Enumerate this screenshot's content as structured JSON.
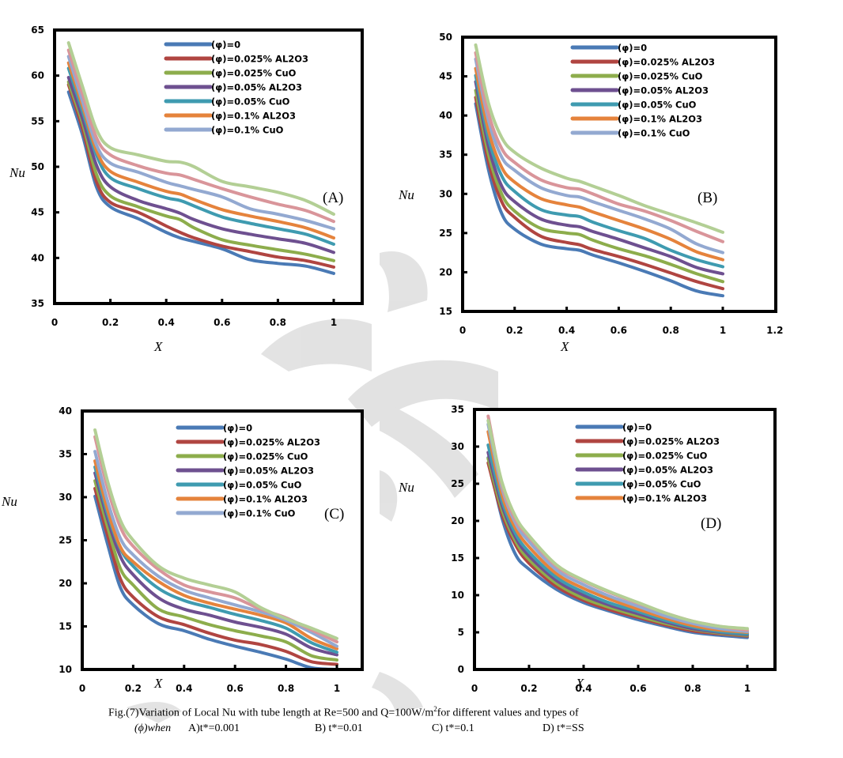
{
  "caption": {
    "line1_pre": "Fig.(7)Variation of Local Nu with tube length at Re=500 and Q=100W/m",
    "line1_sup": "2",
    "line1_post": "for different values and types of",
    "line2_phi": "(ϕ)when",
    "line2_a": "A)t*=0.001",
    "line2_b": "B) t*=0.01",
    "line2_c": "C) t*=0.1",
    "line2_d": "D) t*=SS"
  },
  "colors": {
    "phi0": "#4a7ab5",
    "al_0025": "#b04541",
    "cuo_0025": "#8dad4c",
    "al_005": "#6e5090",
    "cuo_005": "#3f9bb0",
    "al_01": "#e5833c",
    "cuo_01": "#93a9d1",
    "extra_pink": "#d9959a",
    "extra_lightgreen": "#b3cf95"
  },
  "chart_data": [
    {
      "type": "line",
      "panel_label": "(A)",
      "title": "",
      "xlabel": "X",
      "ylabel": "Nu",
      "xlim": [
        0,
        1.1
      ],
      "ylim": [
        35,
        65
      ],
      "xticks": [
        "0",
        "0.2",
        "0.4",
        "0.6",
        "0.8",
        "1"
      ],
      "yticks": [
        "35",
        "40",
        "45",
        "50",
        "55",
        "60",
        "65"
      ],
      "legend_position": "top-right",
      "x": [
        0.05,
        0.1,
        0.15,
        0.2,
        0.3,
        0.4,
        0.45,
        0.5,
        0.6,
        0.7,
        0.8,
        0.9,
        1.0
      ],
      "series": [
        {
          "name": "(φ)=0",
          "color_key": "phi0",
          "in_legend": true,
          "values": [
            58.2,
            53.5,
            47.8,
            45.6,
            44.3,
            42.8,
            42.2,
            41.8,
            41.0,
            39.8,
            39.4,
            39.1,
            38.3
          ]
        },
        {
          "name": "(φ)=0.025% AL2O3",
          "color_key": "al_0025",
          "in_legend": true,
          "values": [
            59.0,
            54.2,
            48.4,
            46.1,
            45.0,
            43.5,
            42.8,
            42.2,
            41.3,
            40.7,
            40.1,
            39.7,
            39.0
          ]
        },
        {
          "name": "(φ)=0.025% CuO",
          "color_key": "cuo_0025",
          "in_legend": true,
          "values": [
            59.3,
            54.8,
            49.2,
            46.8,
            45.6,
            44.6,
            44.2,
            43.3,
            42.0,
            41.4,
            40.9,
            40.4,
            39.7
          ]
        },
        {
          "name": "(φ)=0.05% AL2O3",
          "color_key": "al_005",
          "in_legend": true,
          "values": [
            59.8,
            55.3,
            50.2,
            47.8,
            46.3,
            45.4,
            44.9,
            44.2,
            43.2,
            42.6,
            42.1,
            41.6,
            40.6
          ]
        },
        {
          "name": "(φ)=0.05% CuO",
          "color_key": "cuo_005",
          "in_legend": true,
          "values": [
            60.8,
            56.1,
            51.3,
            48.8,
            47.6,
            46.6,
            46.3,
            45.7,
            44.5,
            43.8,
            43.2,
            42.6,
            41.5
          ]
        },
        {
          "name": "(φ)=0.1% AL2O3",
          "color_key": "al_01",
          "in_legend": true,
          "values": [
            61.4,
            56.7,
            51.8,
            49.5,
            48.3,
            47.3,
            47.0,
            46.4,
            45.3,
            44.6,
            44.0,
            43.3,
            42.2
          ]
        },
        {
          "name": "(φ)=0.1% CuO",
          "color_key": "cuo_01",
          "in_legend": true,
          "values": [
            62.1,
            57.2,
            52.4,
            50.4,
            49.4,
            48.3,
            47.9,
            47.5,
            46.7,
            45.4,
            44.8,
            44.1,
            43.2
          ]
        },
        {
          "name": "",
          "color_key": "extra_pink",
          "in_legend": false,
          "values": [
            62.8,
            58.0,
            53.2,
            51.3,
            50.1,
            49.3,
            49.1,
            48.6,
            47.6,
            46.7,
            45.9,
            45.2,
            44.0
          ]
        },
        {
          "name": "",
          "color_key": "extra_lightgreen",
          "in_legend": false,
          "values": [
            63.6,
            58.8,
            54.1,
            52.1,
            51.3,
            50.6,
            50.5,
            50.0,
            48.4,
            47.8,
            47.2,
            46.3,
            44.8
          ]
        }
      ]
    },
    {
      "type": "line",
      "panel_label": "(B)",
      "title": "",
      "xlabel": "X",
      "ylabel": "Nu",
      "xlim": [
        0,
        1.2
      ],
      "ylim": [
        15,
        50
      ],
      "xticks": [
        "0",
        "0.2",
        "0.4",
        "0.6",
        "0.8",
        "1",
        "1.2"
      ],
      "yticks": [
        "15",
        "20",
        "25",
        "30",
        "35",
        "40",
        "45",
        "50"
      ],
      "legend_position": "top-right",
      "x": [
        0.05,
        0.1,
        0.15,
        0.2,
        0.3,
        0.4,
        0.45,
        0.5,
        0.6,
        0.7,
        0.8,
        0.9,
        1.0
      ],
      "series": [
        {
          "name": "(φ)=0",
          "color_key": "phi0",
          "in_legend": true,
          "values": [
            41.5,
            33.0,
            27.5,
            25.5,
            23.6,
            23.0,
            22.8,
            22.2,
            21.2,
            20.1,
            18.9,
            17.6,
            17.0
          ]
        },
        {
          "name": "(φ)=0.025% AL2O3",
          "color_key": "al_0025",
          "in_legend": true,
          "values": [
            42.3,
            34.0,
            29.0,
            27.0,
            24.6,
            23.8,
            23.5,
            22.9,
            22.0,
            21.0,
            19.9,
            18.8,
            17.9
          ]
        },
        {
          "name": "(φ)=0.025% CuO",
          "color_key": "cuo_0025",
          "in_legend": true,
          "values": [
            43.2,
            35.0,
            30.0,
            27.8,
            25.6,
            25.0,
            24.8,
            24.1,
            23.0,
            22.1,
            21.0,
            19.8,
            18.8
          ]
        },
        {
          "name": "(φ)=0.05% AL2O3",
          "color_key": "al_005",
          "in_legend": true,
          "values": [
            44.3,
            36.0,
            31.0,
            29.0,
            26.8,
            26.0,
            25.8,
            25.2,
            24.2,
            23.1,
            22.0,
            20.6,
            19.8
          ]
        },
        {
          "name": "(φ)=0.05% CuO",
          "color_key": "cuo_005",
          "in_legend": true,
          "values": [
            45.1,
            37.0,
            32.3,
            30.3,
            28.0,
            27.3,
            27.1,
            26.4,
            25.3,
            24.3,
            22.8,
            21.6,
            20.7
          ]
        },
        {
          "name": "(φ)=0.1% AL2O3",
          "color_key": "al_01",
          "in_legend": true,
          "values": [
            46.0,
            38.0,
            33.4,
            31.5,
            29.4,
            28.6,
            28.3,
            27.7,
            26.6,
            25.5,
            24.2,
            22.6,
            21.6
          ]
        },
        {
          "name": "(φ)=0.1% CuO",
          "color_key": "cuo_01",
          "in_legend": true,
          "values": [
            47.2,
            39.3,
            34.7,
            33.0,
            30.8,
            29.8,
            29.6,
            29.0,
            27.9,
            26.8,
            25.5,
            23.6,
            22.5
          ]
        },
        {
          "name": "",
          "color_key": "extra_pink",
          "in_legend": false,
          "values": [
            48.0,
            40.2,
            35.8,
            34.0,
            31.8,
            30.8,
            30.6,
            30.0,
            28.7,
            27.8,
            26.6,
            25.2,
            23.9
          ]
        },
        {
          "name": "",
          "color_key": "extra_lightgreen",
          "in_legend": false,
          "values": [
            49.0,
            41.5,
            37.2,
            35.3,
            33.3,
            32.0,
            31.6,
            31.0,
            29.8,
            28.5,
            27.4,
            26.3,
            25.1
          ]
        }
      ]
    },
    {
      "type": "line",
      "panel_label": "(C)",
      "title": "",
      "xlabel": "X",
      "ylabel": "Nu",
      "xlim": [
        0,
        1.1
      ],
      "ylim": [
        10,
        40
      ],
      "xticks": [
        "0",
        "0.2",
        "0.4",
        "0.6",
        "0.8",
        "1"
      ],
      "yticks": [
        "10",
        "15",
        "20",
        "25",
        "30",
        "35",
        "40"
      ],
      "legend_position": "top-right",
      "x": [
        0.05,
        0.1,
        0.15,
        0.2,
        0.3,
        0.4,
        0.5,
        0.6,
        0.7,
        0.8,
        0.9,
        1.0
      ],
      "series": [
        {
          "name": "(φ)=0",
          "color_key": "phi0",
          "in_legend": true,
          "values": [
            30.1,
            24.5,
            19.5,
            17.5,
            15.3,
            14.5,
            13.5,
            12.7,
            12.0,
            11.2,
            10.2,
            10.0
          ]
        },
        {
          "name": "(φ)=0.025% AL2O3",
          "color_key": "al_0025",
          "in_legend": true,
          "values": [
            31.0,
            25.5,
            20.5,
            18.4,
            16.1,
            15.2,
            14.2,
            13.4,
            12.9,
            12.1,
            10.9,
            10.6
          ]
        },
        {
          "name": "(φ)=0.025% CuO",
          "color_key": "cuo_0025",
          "in_legend": true,
          "values": [
            31.9,
            26.5,
            21.7,
            19.8,
            17.0,
            16.1,
            15.2,
            14.5,
            13.9,
            13.2,
            11.6,
            11.1
          ]
        },
        {
          "name": "(φ)=0.05% AL2O3",
          "color_key": "al_005",
          "in_legend": true,
          "values": [
            32.8,
            27.4,
            23.1,
            21.0,
            18.3,
            17.0,
            16.3,
            15.5,
            14.9,
            14.1,
            12.5,
            11.7
          ]
        },
        {
          "name": "(φ)=0.05% CuO",
          "color_key": "cuo_005",
          "in_legend": true,
          "values": [
            33.5,
            28.0,
            24.0,
            22.0,
            19.4,
            18.0,
            17.2,
            16.4,
            15.7,
            14.8,
            13.1,
            12.0
          ]
        },
        {
          "name": "(φ)=0.1% AL2O3",
          "color_key": "al_01",
          "in_legend": true,
          "values": [
            34.2,
            28.5,
            24.2,
            22.5,
            20.2,
            18.6,
            17.7,
            17.0,
            16.3,
            15.4,
            13.6,
            12.4
          ]
        },
        {
          "name": "(φ)=0.1% CuO",
          "color_key": "cuo_01",
          "in_legend": true,
          "values": [
            35.3,
            29.5,
            25.2,
            23.3,
            20.8,
            19.2,
            18.3,
            17.5,
            16.7,
            15.7,
            14.3,
            12.7
          ]
        },
        {
          "name": "",
          "color_key": "extra_pink",
          "in_legend": false,
          "values": [
            37.0,
            31.0,
            26.5,
            24.3,
            21.6,
            19.8,
            19.0,
            18.3,
            17.0,
            16.0,
            14.6,
            13.2
          ]
        },
        {
          "name": "",
          "color_key": "extra_lightgreen",
          "in_legend": false,
          "values": [
            37.8,
            31.8,
            27.3,
            25.0,
            22.0,
            20.6,
            19.8,
            19.0,
            17.2,
            15.9,
            14.8,
            13.6
          ]
        }
      ]
    },
    {
      "type": "line",
      "panel_label": "(D)",
      "title": "",
      "xlabel": "X",
      "ylabel": "Nu",
      "xlim": [
        0,
        1.1
      ],
      "ylim": [
        0,
        35
      ],
      "xticks": [
        "0",
        "0.2",
        "0.4",
        "0.6",
        "0.8",
        "1"
      ],
      "yticks": [
        "0",
        "5",
        "10",
        "15",
        "20",
        "25",
        "30",
        "35"
      ],
      "legend_position": "top-right",
      "x": [
        0.05,
        0.1,
        0.15,
        0.2,
        0.3,
        0.4,
        0.5,
        0.6,
        0.7,
        0.8,
        0.9,
        1.0
      ],
      "series": [
        {
          "name": "(φ)=0",
          "color_key": "phi0",
          "in_legend": true,
          "values": [
            28.5,
            20.5,
            15.5,
            13.5,
            10.8,
            9.0,
            7.8,
            6.7,
            5.8,
            5.0,
            4.6,
            4.3
          ]
        },
        {
          "name": "(φ)=0.025% AL2O3",
          "color_key": "al_0025",
          "in_legend": true,
          "values": [
            27.8,
            21.0,
            16.8,
            14.3,
            11.2,
            9.3,
            8.0,
            7.0,
            6.0,
            5.2,
            4.8,
            4.5
          ]
        },
        {
          "name": "(φ)=0.025% CuO",
          "color_key": "cuo_0025",
          "in_legend": true,
          "values": [
            28.4,
            21.6,
            17.3,
            14.8,
            11.6,
            9.6,
            8.3,
            7.2,
            6.2,
            5.4,
            4.9,
            4.6
          ]
        },
        {
          "name": "(φ)=0.05% AL2O3",
          "color_key": "al_005",
          "in_legend": true,
          "values": [
            29.2,
            22.2,
            17.8,
            15.3,
            12.0,
            10.0,
            8.6,
            7.5,
            6.4,
            5.5,
            5.0,
            4.7
          ]
        },
        {
          "name": "(φ)=0.05% CuO",
          "color_key": "cuo_005",
          "in_legend": true,
          "values": [
            30.2,
            22.8,
            18.3,
            15.8,
            12.4,
            10.4,
            8.9,
            7.8,
            6.6,
            5.7,
            5.1,
            4.8
          ]
        },
        {
          "name": "(φ)=0.1% AL2O3",
          "color_key": "al_01",
          "in_legend": true,
          "values": [
            32.0,
            23.6,
            19.0,
            16.5,
            12.9,
            10.9,
            9.4,
            8.1,
            6.9,
            5.9,
            5.3,
            5.0
          ]
        },
        {
          "name": "",
          "color_key": "cuo_01",
          "in_legend": false,
          "values": [
            33.0,
            24.5,
            19.7,
            17.2,
            13.4,
            11.4,
            9.8,
            8.5,
            7.2,
            6.2,
            5.5,
            5.1
          ]
        },
        {
          "name": "",
          "color_key": "extra_pink",
          "in_legend": false,
          "values": [
            34.1,
            25.0,
            20.2,
            17.8,
            13.9,
            11.9,
            10.3,
            8.9,
            7.6,
            6.5,
            5.8,
            5.3
          ]
        },
        {
          "name": "",
          "color_key": "extra_lightgreen",
          "in_legend": false,
          "values": [
            33.5,
            25.3,
            20.6,
            18.0,
            14.1,
            12.0,
            10.4,
            9.0,
            7.6,
            6.5,
            5.8,
            5.5
          ]
        }
      ]
    }
  ]
}
